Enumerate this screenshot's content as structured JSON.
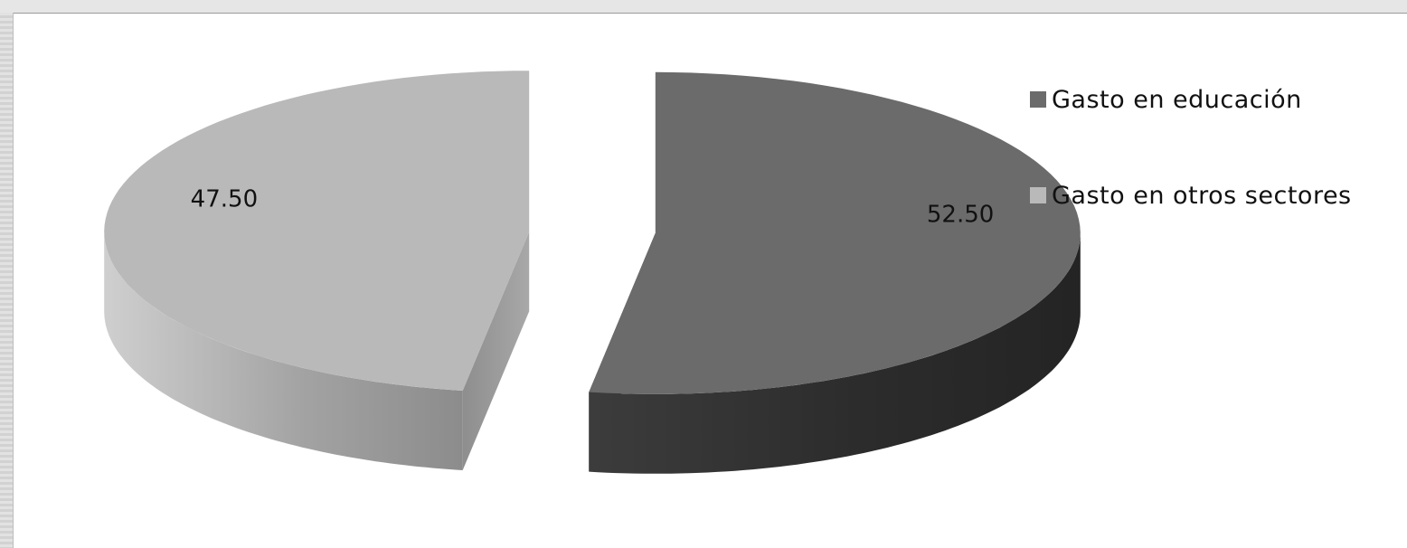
{
  "chart_data": {
    "type": "pie",
    "categories": [
      "Gasto en educación",
      "Gasto en otros sectores"
    ],
    "values": [
      52.5,
      47.5
    ],
    "data_labels": [
      "52.50",
      "47.50"
    ],
    "exploded": true,
    "three_d": true,
    "legend_position": "right",
    "colors": [
      "#6b6b6b",
      "#b9b9b9"
    ]
  },
  "legend": {
    "items": [
      {
        "label": "Gasto en educación",
        "color": "#6b6b6b"
      },
      {
        "label": "Gasto en otros sectores",
        "color": "#b9b9b9"
      }
    ]
  }
}
